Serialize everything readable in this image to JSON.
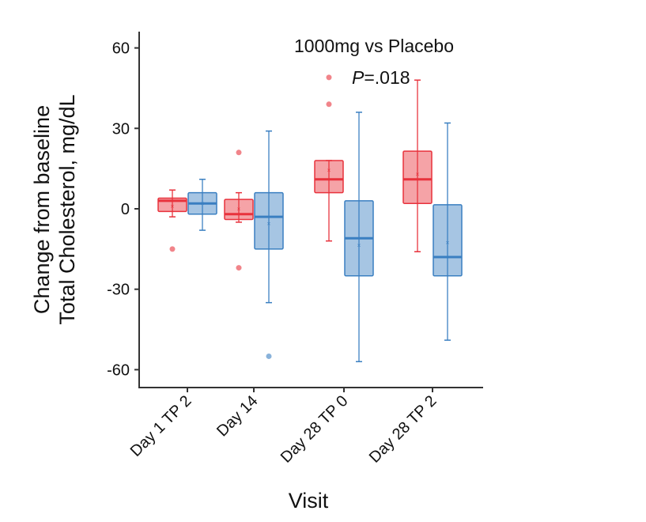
{
  "chart_data": {
    "type": "boxplot",
    "annotation": {
      "title": "1000mg vs Placebo",
      "p_label": "P",
      "p_value": "=.018"
    },
    "xlabel": "Visit",
    "ylabel_line1": "Change from baseline",
    "ylabel_line2": "Total Cholesterol, mg/dL",
    "ylim": [
      -65,
      65
    ],
    "yticks": [
      60,
      30,
      0,
      -30,
      -60
    ],
    "ytick_labels": [
      "60",
      "30",
      "0",
      "-30",
      "-60"
    ],
    "categories": [
      "Day 1 TP 2",
      "Day 14",
      "Day 28 TP 0",
      "Day 28 TP 2"
    ],
    "grid": false,
    "legend": "none",
    "series": [
      {
        "color": "#e8323c",
        "boxes": [
          {
            "min": -3,
            "q1": -1,
            "median": 3,
            "q3": 4,
            "max": 7,
            "mean": 1,
            "outliers": [
              -15
            ]
          },
          {
            "min": -5,
            "q1": -4,
            "median": -2,
            "q3": 3.5,
            "max": 6,
            "mean": 0,
            "outliers": [
              21,
              -22
            ]
          },
          {
            "min": -12,
            "q1": 6,
            "median": 11,
            "q3": 18,
            "max": 18,
            "mean": 14.5,
            "outliers": [
              49,
              39
            ]
          },
          {
            "min": -16,
            "q1": 2,
            "median": 11,
            "q3": 21.5,
            "max": 48,
            "mean": 13,
            "outliers": []
          }
        ]
      },
      {
        "color": "#3a7fc1",
        "boxes": [
          {
            "min": -8,
            "q1": -2,
            "median": 2,
            "q3": 6,
            "max": 11,
            "mean": 2,
            "outliers": []
          },
          {
            "min": -35,
            "q1": -15,
            "median": -3,
            "q3": 6,
            "max": 29,
            "mean": -5.5,
            "outliers": [
              -55
            ]
          },
          {
            "min": -57,
            "q1": -25,
            "median": -11,
            "q3": 3,
            "max": 36,
            "mean": -13.5,
            "outliers": []
          },
          {
            "min": -49,
            "q1": -25,
            "median": -18,
            "q3": 1.5,
            "max": 32,
            "mean": -12.5,
            "outliers": []
          }
        ]
      }
    ]
  }
}
